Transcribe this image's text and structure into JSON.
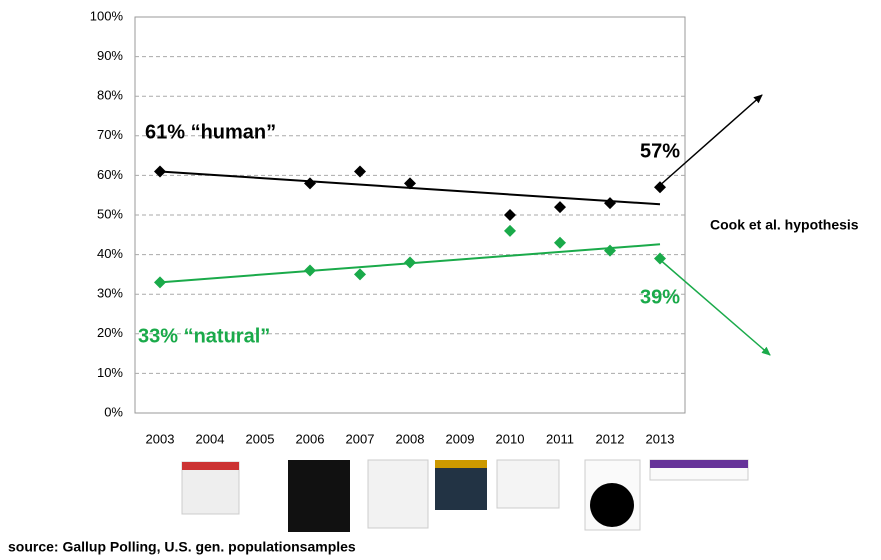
{
  "chart_data": {
    "type": "scatter",
    "categories": [
      "2003",
      "2004",
      "2005",
      "2006",
      "2007",
      "2008",
      "2009",
      "2010",
      "2011",
      "2012",
      "2013"
    ],
    "series": [
      {
        "name": "human",
        "color": "#000000",
        "values": [
          61,
          null,
          null,
          58,
          61,
          58,
          null,
          50,
          52,
          53,
          57
        ],
        "trend": [
          61,
          52.7
        ]
      },
      {
        "name": "natural",
        "color": "#1aaa4a",
        "values": [
          33,
          null,
          null,
          36,
          35,
          38,
          null,
          46,
          43,
          41,
          39
        ],
        "trend": [
          33,
          42.6
        ]
      }
    ],
    "ylim": [
      0,
      100
    ],
    "yticks": [
      {
        "value": 0,
        "label": "0%"
      },
      {
        "value": 10,
        "label": "10%"
      },
      {
        "value": 20,
        "label": "20%"
      },
      {
        "value": 30,
        "label": "30%"
      },
      {
        "value": 40,
        "label": "40%"
      },
      {
        "value": 50,
        "label": "50%"
      },
      {
        "value": 60,
        "label": "60%"
      },
      {
        "value": 70,
        "label": "70%"
      },
      {
        "value": 80,
        "label": "80%"
      },
      {
        "value": 90,
        "label": "90%"
      },
      {
        "value": 100,
        "label": "100%"
      }
    ],
    "grid": true,
    "annotations": [
      "61%  “human”",
      "33%  “natural”",
      "57%",
      "39%",
      "Cook et al. hypothesis"
    ],
    "source": "source: Gallup Polling, U.S. gen. populationsamples"
  }
}
